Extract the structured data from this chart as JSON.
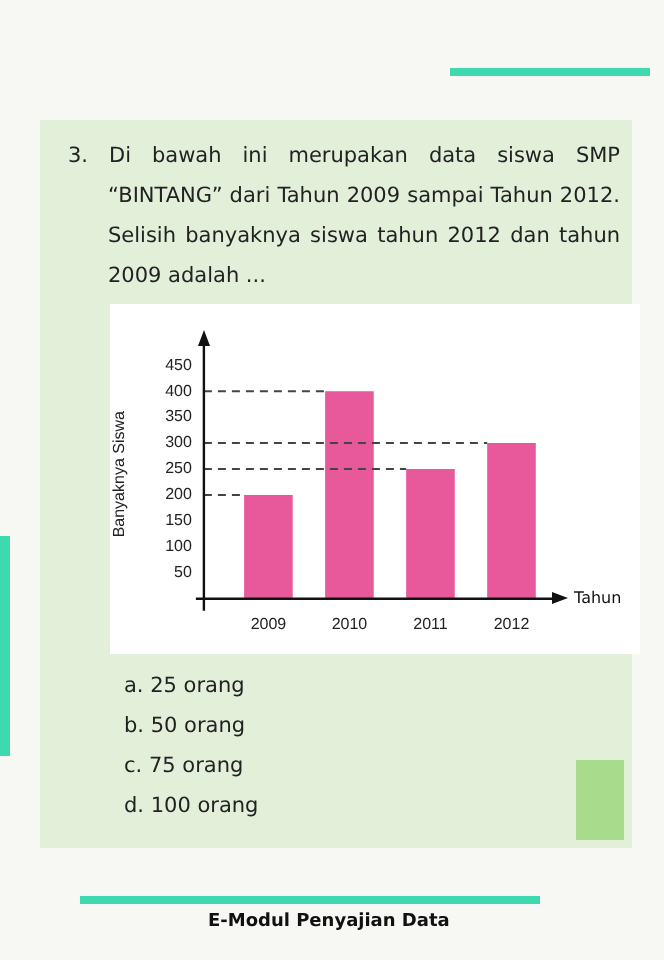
{
  "chart_data": {
    "type": "bar",
    "title": "3. Di bawah ini merupakan data siswa SMP “BINTANG” dari Tahun 2009 sampai Tahun 2012. Selisih banyaknya siswa tahun 2012 dan tahun 2009 adalah ...",
    "xlabel": "Tahun",
    "ylabel": "Banyaknya Siswa",
    "categories": [
      "2009",
      "2010",
      "2011",
      "2012"
    ],
    "values": [
      200,
      400,
      250,
      300
    ],
    "color": "#e8599c",
    "ylim": [
      0,
      480
    ],
    "yticks": [
      50,
      100,
      150,
      200,
      250,
      300,
      350,
      400,
      450
    ],
    "grid": false,
    "legend": false,
    "ref_lines": [
      {
        "axis": "y",
        "value": 400,
        "line_style": "dashed",
        "color": "#444444"
      },
      {
        "axis": "y",
        "value": 300,
        "line_style": "dashed",
        "color": "#444444"
      },
      {
        "axis": "y",
        "value": 250,
        "line_style": "dashed",
        "color": "#444444"
      },
      {
        "axis": "y",
        "value": 200,
        "line_style": "dashed",
        "color": "#444444"
      }
    ],
    "annotations": [
      "a.  25 orang",
      "b.  50 orang",
      "c.  75 orang",
      "d.  100 orang",
      "E-Modul Penyajian Data"
    ]
  }
}
